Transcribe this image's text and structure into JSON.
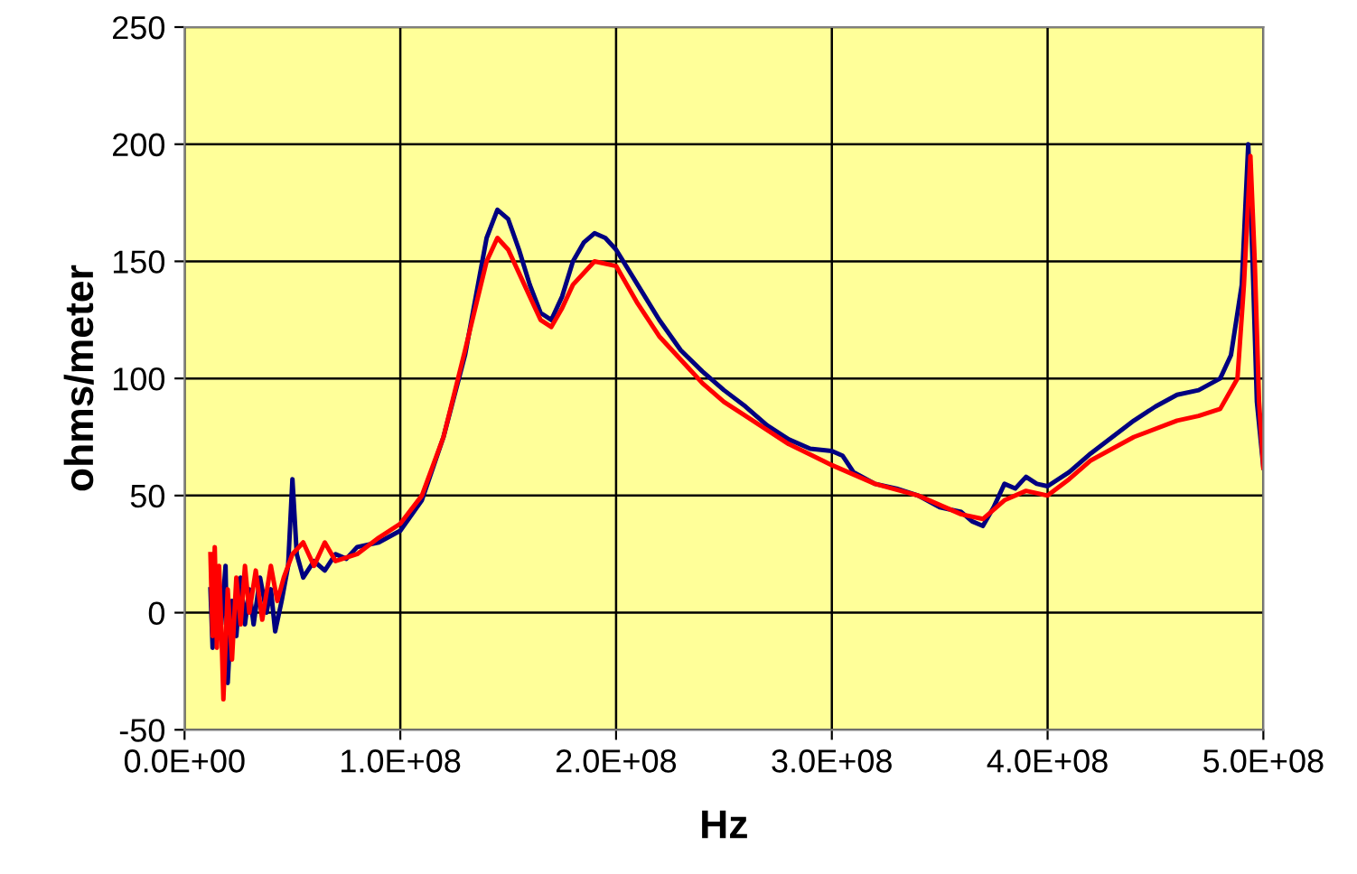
{
  "chart_data": {
    "type": "line",
    "xlabel": "Hz",
    "ylabel": "ohms/meter",
    "xlim": [
      0,
      500000000
    ],
    "ylim": [
      -50,
      250
    ],
    "xticks": [
      {
        "value": 0,
        "label": "0.0E+00"
      },
      {
        "value": 100000000,
        "label": "1.0E+08"
      },
      {
        "value": 200000000,
        "label": "2.0E+08"
      },
      {
        "value": 300000000,
        "label": "3.0E+08"
      },
      {
        "value": 400000000,
        "label": "4.0E+08"
      },
      {
        "value": 500000000,
        "label": "5.0E+08"
      }
    ],
    "yticks": [
      -50,
      0,
      50,
      100,
      150,
      200,
      250
    ],
    "grid": true,
    "marker": "none",
    "line_style": "solid",
    "series": [
      {
        "color": "#000080",
        "x": [
          12000000,
          13000000,
          14000000,
          15000000,
          16000000,
          17000000,
          19000000,
          20000000,
          22000000,
          24000000,
          26000000,
          28000000,
          30000000,
          32000000,
          35000000,
          38000000,
          40000000,
          42000000,
          45000000,
          48000000,
          50000000,
          52000000,
          55000000,
          60000000,
          65000000,
          70000000,
          75000000,
          80000000,
          90000000,
          100000000,
          110000000,
          120000000,
          130000000,
          135000000,
          140000000,
          145000000,
          150000000,
          155000000,
          160000000,
          165000000,
          170000000,
          175000000,
          180000000,
          185000000,
          190000000,
          195000000,
          200000000,
          210000000,
          220000000,
          230000000,
          240000000,
          250000000,
          260000000,
          270000000,
          280000000,
          290000000,
          300000000,
          305000000,
          310000000,
          320000000,
          330000000,
          340000000,
          350000000,
          360000000,
          365000000,
          370000000,
          375000000,
          380000000,
          385000000,
          390000000,
          395000000,
          400000000,
          410000000,
          420000000,
          430000000,
          440000000,
          450000000,
          460000000,
          470000000,
          480000000,
          485000000,
          490000000,
          493000000,
          495000000,
          497000000,
          500000000
        ],
        "values": [
          10,
          -15,
          20,
          -10,
          15,
          -5,
          20,
          -30,
          5,
          -10,
          15,
          -5,
          10,
          -5,
          15,
          0,
          10,
          -8,
          5,
          20,
          57,
          25,
          15,
          22,
          18,
          25,
          23,
          28,
          30,
          35,
          48,
          75,
          110,
          135,
          160,
          172,
          168,
          155,
          140,
          128,
          125,
          135,
          150,
          158,
          162,
          160,
          155,
          140,
          125,
          112,
          103,
          95,
          88,
          80,
          74,
          70,
          69,
          67,
          60,
          55,
          53,
          50,
          45,
          43,
          39,
          37,
          45,
          55,
          53,
          58,
          55,
          54,
          60,
          68,
          75,
          82,
          88,
          93,
          95,
          100,
          110,
          140,
          200,
          150,
          90,
          62
        ]
      },
      {
        "color": "#ff0000",
        "x": [
          12000000,
          13000000,
          14000000,
          15000000,
          16000000,
          17000000,
          18000000,
          20000000,
          22000000,
          24000000,
          26000000,
          28000000,
          30000000,
          33000000,
          36000000,
          40000000,
          43000000,
          46000000,
          50000000,
          55000000,
          60000000,
          65000000,
          70000000,
          80000000,
          90000000,
          100000000,
          110000000,
          120000000,
          130000000,
          140000000,
          145000000,
          150000000,
          155000000,
          160000000,
          165000000,
          170000000,
          175000000,
          180000000,
          190000000,
          200000000,
          210000000,
          220000000,
          240000000,
          250000000,
          260000000,
          280000000,
          300000000,
          320000000,
          340000000,
          360000000,
          370000000,
          380000000,
          390000000,
          400000000,
          410000000,
          420000000,
          440000000,
          460000000,
          470000000,
          480000000,
          488000000,
          491000000,
          494000000,
          496000000,
          498000000,
          500000000
        ],
        "values": [
          25,
          -10,
          28,
          -15,
          20,
          -5,
          -37,
          10,
          -20,
          15,
          -5,
          20,
          0,
          18,
          -3,
          20,
          5,
          15,
          25,
          30,
          20,
          30,
          22,
          25,
          32,
          38,
          50,
          75,
          112,
          150,
          160,
          155,
          145,
          135,
          125,
          122,
          130,
          140,
          150,
          148,
          132,
          118,
          98,
          90,
          84,
          72,
          63,
          55,
          50,
          42,
          40,
          48,
          52,
          50,
          57,
          65,
          75,
          82,
          84,
          87,
          100,
          140,
          195,
          150,
          90,
          62
        ]
      }
    ]
  }
}
